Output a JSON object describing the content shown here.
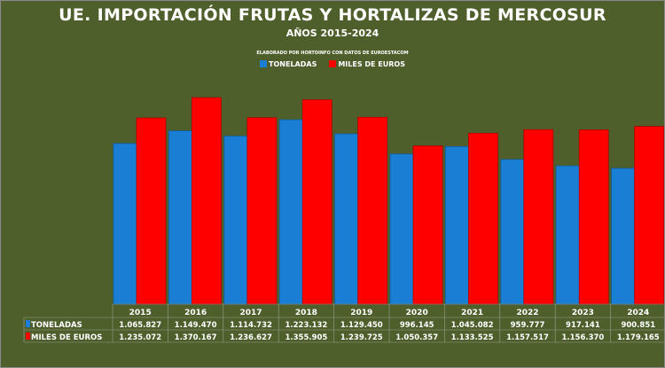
{
  "chart_data": {
    "type": "bar",
    "title": "UE. IMPORTACIÓN FRUTAS Y HORTALIZAS DE MERCOSUR",
    "subtitle": "AÑOS 2015-2024",
    "credit": "ELABORADO POR HORTOINFO CON DATOS DE EUROESTACOM",
    "categories": [
      "2015",
      "2016",
      "2017",
      "2018",
      "2019",
      "2020",
      "2021",
      "2022",
      "2023",
      "2024"
    ],
    "series": [
      {
        "name": "TONELADAS",
        "color": "#1a7fd4",
        "values": [
          1065827,
          1149470,
          1114732,
          1223132,
          1129450,
          996145,
          1045082,
          959777,
          917141,
          900851
        ],
        "labels": [
          "1.065.827",
          "1.149.470",
          "1.114.732",
          "1.223.132",
          "1.129.450",
          "996.145",
          "1.045.082",
          "959.777",
          "917.141",
          "900.851"
        ]
      },
      {
        "name": "MILES DE EUROS",
        "color": "#ff0000",
        "values": [
          1235072,
          1370167,
          1236627,
          1355905,
          1239725,
          1050357,
          1133525,
          1157517,
          1156370,
          1179165
        ],
        "labels": [
          "1.235.072",
          "1.370.167",
          "1.236.627",
          "1.355.905",
          "1.239.725",
          "1.050.357",
          "1.133.525",
          "1.157.517",
          "1.156.370",
          "1.179.165"
        ]
      }
    ],
    "ylim": [
      0,
      1400000
    ],
    "grid": false,
    "legend": "top-center",
    "data_table": true
  }
}
